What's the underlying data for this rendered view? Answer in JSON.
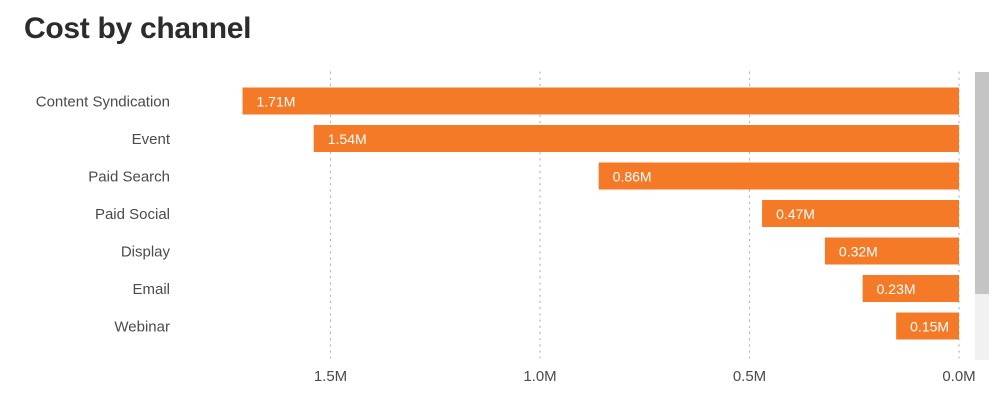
{
  "title": "Cost by channel",
  "colors": {
    "bar": "#F57A28",
    "grid": "#B8B8B8",
    "scroll_track": "#F1F1F1",
    "scroll_thumb": "#C4C4C4"
  },
  "chart_data": {
    "type": "bar",
    "orientation": "horizontal",
    "x_reversed": true,
    "title": "Cost by channel",
    "categories": [
      "Content Syndication",
      "Event",
      "Paid Search",
      "Paid Social",
      "Display",
      "Email",
      "Webinar"
    ],
    "values": [
      1.71,
      1.54,
      0.86,
      0.47,
      0.32,
      0.23,
      0.15
    ],
    "value_labels": [
      "1.71M",
      "1.54M",
      "0.86M",
      "0.47M",
      "0.32M",
      "0.23M",
      "0.15M"
    ],
    "unit": "M",
    "xticks": [
      1.5,
      1.0,
      0.5,
      0.0
    ],
    "xtick_labels": [
      "1.5M",
      "1.0M",
      "0.5M",
      "0.0M"
    ],
    "grid": "vertical dotted",
    "legend": "none"
  }
}
